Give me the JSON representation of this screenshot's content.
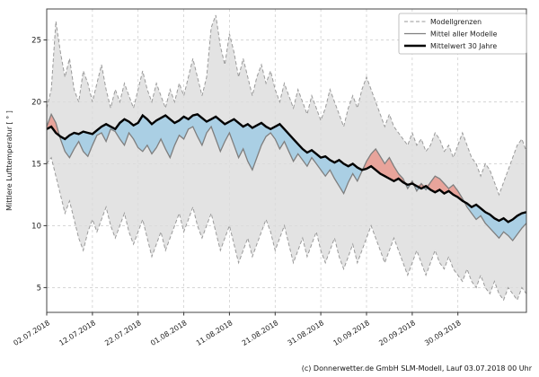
{
  "caption": "(c) Donnerwetter.de GmbH SLM-Modell, Lauf 03.07.2018 00 Uhr",
  "chart_data": {
    "type": "line",
    "title": "",
    "xlabel": "",
    "ylabel": "Mittlere Lufttemperatur [ ° ]",
    "ylim": [
      3,
      27.5
    ],
    "yticks": [
      5,
      10,
      15,
      20,
      25
    ],
    "grid": true,
    "legend_position": "upper right",
    "legend": [
      "Modellgrenzen",
      "Mittel aller Modelle",
      "Mittelwert 30 Jahre"
    ],
    "xtick_labels": [
      "02.07.2018",
      "12.07.2018",
      "22.07.2018",
      "01.08.2018",
      "11.08.2018",
      "21.08.2018",
      "31.08.2018",
      "10.09.2018",
      "20.09.2018",
      "30.09.2018"
    ],
    "xtick_days": [
      0,
      10,
      20,
      30,
      40,
      50,
      60,
      70,
      80,
      90
    ],
    "x_start_date": "02.07.2018",
    "days_total": 106,
    "colors": {
      "band_fill": "#dcdcdc",
      "band_edge": "#9a9a9a",
      "model_mean": "#7f7f7f",
      "climate_mean": "#000000",
      "below_normal_fill": "#aacfe4",
      "above_normal_fill": "#e8a49b",
      "grid": "#c9c9c9",
      "frame": "#444444"
    },
    "series": [
      {
        "name": "Modellgrenzen (obere Grenze)",
        "role": "band_upper",
        "values": [
          19.5,
          21.0,
          26.5,
          24.0,
          22.0,
          23.5,
          21.0,
          20.0,
          22.5,
          21.5,
          20.0,
          21.5,
          23.0,
          21.0,
          19.5,
          21.0,
          20.0,
          21.5,
          20.5,
          19.5,
          21.0,
          22.5,
          21.0,
          20.0,
          21.5,
          20.5,
          19.5,
          21.0,
          20.0,
          21.5,
          20.5,
          22.0,
          23.5,
          22.0,
          20.5,
          22.0,
          26.0,
          27.0,
          24.5,
          23.0,
          25.5,
          24.0,
          22.0,
          23.5,
          22.0,
          20.5,
          22.0,
          23.0,
          21.5,
          22.5,
          21.0,
          20.0,
          21.5,
          20.5,
          19.5,
          21.0,
          20.0,
          19.0,
          20.5,
          19.5,
          18.5,
          19.5,
          21.0,
          20.0,
          19.0,
          18.0,
          19.5,
          20.5,
          19.5,
          21.0,
          22.0,
          21.0,
          20.0,
          19.0,
          18.0,
          19.0,
          18.0,
          17.5,
          17.0,
          16.5,
          17.5,
          16.5,
          17.0,
          16.0,
          16.5,
          17.5,
          17.0,
          16.0,
          16.5,
          15.5,
          16.5,
          17.5,
          16.5,
          15.5,
          15.0,
          14.0,
          15.0,
          14.5,
          13.5,
          12.5,
          13.5,
          14.5,
          15.5,
          16.5,
          17.0,
          16.0
        ]
      },
      {
        "name": "Modellgrenzen (untere Grenze)",
        "role": "band_lower",
        "values": [
          15.0,
          15.5,
          14.0,
          12.5,
          11.0,
          12.0,
          10.5,
          9.0,
          8.0,
          9.5,
          10.5,
          9.5,
          10.5,
          11.5,
          10.0,
          9.0,
          10.0,
          11.0,
          9.5,
          8.5,
          9.5,
          10.5,
          9.0,
          7.5,
          8.5,
          9.5,
          8.0,
          9.0,
          10.0,
          11.0,
          9.5,
          10.5,
          11.5,
          10.0,
          9.0,
          10.0,
          11.0,
          9.5,
          8.0,
          9.0,
          10.0,
          8.5,
          7.0,
          8.0,
          9.0,
          7.5,
          8.5,
          9.5,
          10.5,
          9.5,
          8.0,
          9.0,
          10.0,
          8.5,
          7.0,
          8.0,
          9.0,
          7.5,
          8.5,
          9.5,
          8.0,
          7.0,
          8.0,
          9.0,
          7.5,
          6.5,
          7.5,
          8.5,
          7.0,
          8.0,
          9.0,
          10.0,
          9.0,
          8.0,
          7.0,
          8.0,
          9.0,
          8.0,
          7.0,
          6.0,
          7.0,
          8.0,
          7.0,
          6.0,
          7.0,
          8.0,
          7.0,
          6.5,
          7.5,
          6.5,
          6.0,
          5.5,
          6.5,
          5.5,
          5.0,
          6.0,
          5.0,
          4.5,
          5.5,
          4.5,
          4.0,
          5.0,
          4.5,
          4.0,
          5.0,
          4.5
        ]
      },
      {
        "name": "Mittel aller Modelle",
        "role": "model_mean",
        "values": [
          18.0,
          19.0,
          18.3,
          17.0,
          16.0,
          15.5,
          16.2,
          16.8,
          16.0,
          15.6,
          16.5,
          17.3,
          17.5,
          16.8,
          17.8,
          17.6,
          17.0,
          16.5,
          17.5,
          17.0,
          16.3,
          16.0,
          16.5,
          15.8,
          16.3,
          17.0,
          16.2,
          15.5,
          16.5,
          17.3,
          17.0,
          17.8,
          18.0,
          17.2,
          16.5,
          17.5,
          18.0,
          17.0,
          16.0,
          16.8,
          17.5,
          16.5,
          15.5,
          16.2,
          15.2,
          14.5,
          15.5,
          16.5,
          17.2,
          17.5,
          17.0,
          16.2,
          16.8,
          16.0,
          15.2,
          15.8,
          15.3,
          14.8,
          15.5,
          15.0,
          14.5,
          14.0,
          14.5,
          13.8,
          13.2,
          12.6,
          13.5,
          14.2,
          13.6,
          14.4,
          15.2,
          15.8,
          16.2,
          15.6,
          15.0,
          15.5,
          14.8,
          14.2,
          13.8,
          13.0,
          13.6,
          12.8,
          13.4,
          12.9,
          13.5,
          14.0,
          13.8,
          13.4,
          13.0,
          13.3,
          12.8,
          12.2,
          11.5,
          11.0,
          10.5,
          10.8,
          10.2,
          9.8,
          9.4,
          9.0,
          9.5,
          9.2,
          8.8,
          9.3,
          9.8,
          10.2
        ]
      },
      {
        "name": "Mittelwert 30 Jahre",
        "role": "climate_mean",
        "values": [
          17.8,
          18.0,
          17.5,
          17.2,
          17.0,
          17.3,
          17.5,
          17.4,
          17.6,
          17.5,
          17.4,
          17.7,
          18.0,
          18.2,
          18.0,
          17.8,
          18.3,
          18.6,
          18.4,
          18.1,
          18.3,
          18.9,
          18.6,
          18.2,
          18.5,
          18.7,
          18.9,
          18.6,
          18.3,
          18.5,
          18.8,
          18.6,
          18.9,
          19.0,
          18.7,
          18.4,
          18.6,
          18.8,
          18.5,
          18.2,
          18.4,
          18.6,
          18.3,
          18.0,
          18.2,
          17.9,
          18.1,
          18.3,
          18.0,
          17.8,
          18.0,
          18.2,
          17.8,
          17.4,
          17.0,
          16.6,
          16.2,
          15.9,
          16.1,
          15.8,
          15.5,
          15.6,
          15.3,
          15.1,
          15.3,
          15.0,
          14.8,
          15.0,
          14.7,
          14.5,
          14.6,
          14.8,
          14.5,
          14.2,
          14.0,
          13.8,
          13.6,
          13.8,
          13.5,
          13.3,
          13.4,
          13.2,
          13.0,
          13.2,
          12.9,
          12.7,
          12.9,
          12.6,
          12.8,
          12.5,
          12.3,
          12.0,
          11.8,
          11.5,
          11.7,
          11.4,
          11.1,
          10.9,
          10.6,
          10.4,
          10.6,
          10.3,
          10.5,
          10.8,
          11.0,
          11.1
        ]
      }
    ]
  }
}
